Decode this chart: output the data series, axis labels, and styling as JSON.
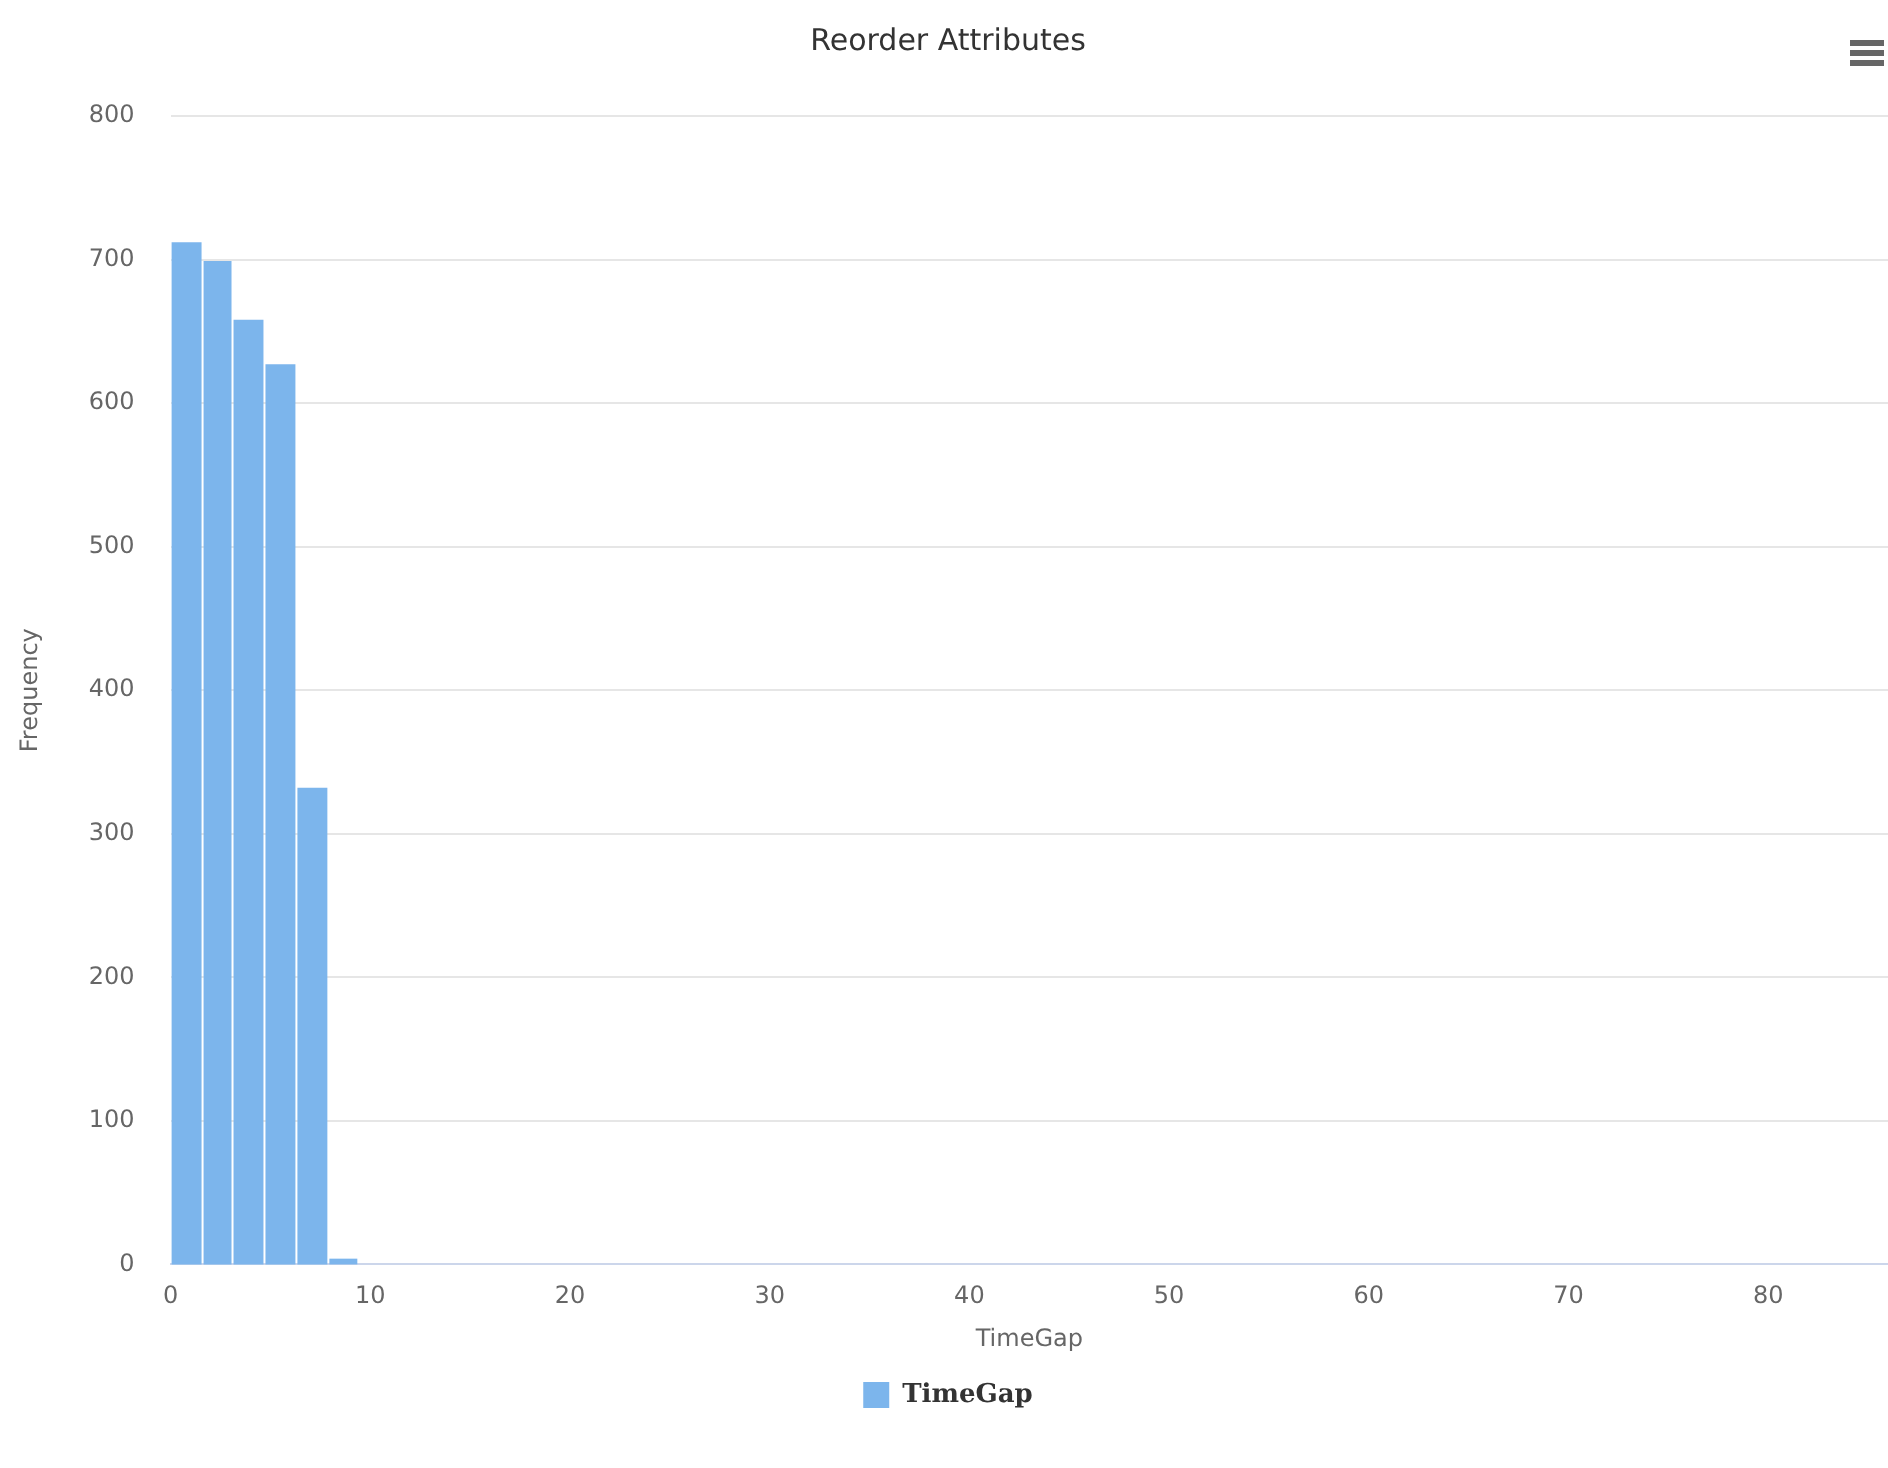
{
  "chart_data": {
    "type": "histogram",
    "title": "Reorder Attributes",
    "xlabel": "TimeGap",
    "ylabel": "Frequency",
    "bins": [
      0,
      1.6,
      3.1,
      4.7,
      6.3,
      7.9,
      9.4
    ],
    "series": [
      {
        "name": "TimeGap",
        "color": "#7cb5ec",
        "values": [
          712,
          699,
          658,
          627,
          332,
          4
        ]
      }
    ],
    "xlim": [
      0,
      86
    ],
    "xticks": [
      0,
      10,
      20,
      30,
      40,
      50,
      60,
      70,
      80
    ],
    "ylim": [
      0,
      800
    ],
    "yticks": [
      0,
      100,
      200,
      300,
      400,
      500,
      600,
      700,
      800
    ],
    "grid": "y",
    "legend": "bottom"
  }
}
